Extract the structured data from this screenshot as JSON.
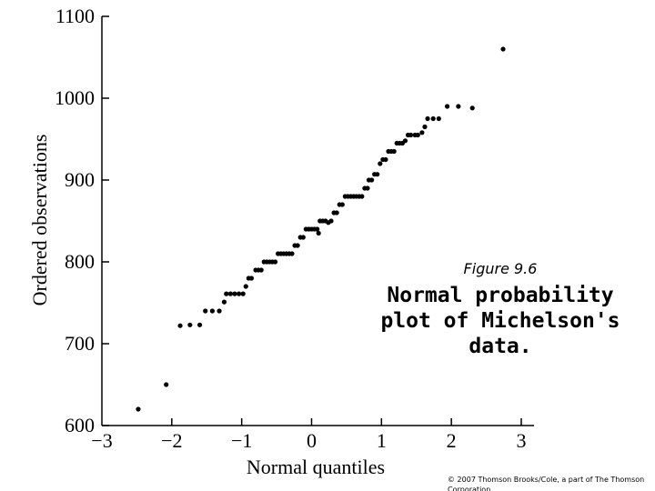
{
  "chart_data": {
    "type": "scatter",
    "xlabel": "Normal quantiles",
    "ylabel": "Ordered observations",
    "xlim": [
      -3,
      3
    ],
    "ylim": [
      600,
      1100
    ],
    "x_ticks": [
      "−3",
      "−2",
      "−1",
      "0",
      "1",
      "2",
      "3"
    ],
    "y_ticks": [
      "600",
      "700",
      "800",
      "900",
      "1000",
      "1100"
    ],
    "grid": false,
    "marker_color": "#000000",
    "points": [
      {
        "x": -2.48,
        "y": 620
      },
      {
        "x": -2.08,
        "y": 650
      },
      {
        "x": -1.88,
        "y": 722
      },
      {
        "x": -1.74,
        "y": 723
      },
      {
        "x": -1.6,
        "y": 723
      },
      {
        "x": -1.52,
        "y": 740
      },
      {
        "x": -1.42,
        "y": 740
      },
      {
        "x": -1.32,
        "y": 740
      },
      {
        "x": -1.25,
        "y": 751
      },
      {
        "x": -1.22,
        "y": 761
      },
      {
        "x": -1.16,
        "y": 761
      },
      {
        "x": -1.1,
        "y": 761
      },
      {
        "x": -1.04,
        "y": 761
      },
      {
        "x": -0.98,
        "y": 761
      },
      {
        "x": -0.94,
        "y": 770
      },
      {
        "x": -0.9,
        "y": 780
      },
      {
        "x": -0.86,
        "y": 780
      },
      {
        "x": -0.8,
        "y": 790
      },
      {
        "x": -0.76,
        "y": 790
      },
      {
        "x": -0.72,
        "y": 790
      },
      {
        "x": -0.68,
        "y": 800
      },
      {
        "x": -0.64,
        "y": 800
      },
      {
        "x": -0.6,
        "y": 800
      },
      {
        "x": -0.56,
        "y": 800
      },
      {
        "x": -0.52,
        "y": 800
      },
      {
        "x": -0.48,
        "y": 810
      },
      {
        "x": -0.44,
        "y": 810
      },
      {
        "x": -0.4,
        "y": 810
      },
      {
        "x": -0.36,
        "y": 810
      },
      {
        "x": -0.32,
        "y": 810
      },
      {
        "x": -0.28,
        "y": 810
      },
      {
        "x": -0.24,
        "y": 820
      },
      {
        "x": -0.2,
        "y": 820
      },
      {
        "x": -0.16,
        "y": 830
      },
      {
        "x": -0.12,
        "y": 830
      },
      {
        "x": -0.08,
        "y": 840
      },
      {
        "x": -0.04,
        "y": 840
      },
      {
        "x": 0.0,
        "y": 840
      },
      {
        "x": 0.04,
        "y": 840
      },
      {
        "x": 0.08,
        "y": 840
      },
      {
        "x": 0.1,
        "y": 835
      },
      {
        "x": 0.12,
        "y": 850
      },
      {
        "x": 0.16,
        "y": 850
      },
      {
        "x": 0.2,
        "y": 850
      },
      {
        "x": 0.24,
        "y": 848
      },
      {
        "x": 0.28,
        "y": 850
      },
      {
        "x": 0.32,
        "y": 860
      },
      {
        "x": 0.36,
        "y": 860
      },
      {
        "x": 0.4,
        "y": 870
      },
      {
        "x": 0.44,
        "y": 870
      },
      {
        "x": 0.48,
        "y": 880
      },
      {
        "x": 0.52,
        "y": 880
      },
      {
        "x": 0.56,
        "y": 880
      },
      {
        "x": 0.6,
        "y": 880
      },
      {
        "x": 0.64,
        "y": 880
      },
      {
        "x": 0.68,
        "y": 880
      },
      {
        "x": 0.72,
        "y": 880
      },
      {
        "x": 0.76,
        "y": 890
      },
      {
        "x": 0.8,
        "y": 890
      },
      {
        "x": 0.82,
        "y": 900
      },
      {
        "x": 0.86,
        "y": 900
      },
      {
        "x": 0.9,
        "y": 907
      },
      {
        "x": 0.94,
        "y": 907
      },
      {
        "x": 0.98,
        "y": 920
      },
      {
        "x": 1.02,
        "y": 925
      },
      {
        "x": 1.06,
        "y": 925
      },
      {
        "x": 1.1,
        "y": 935
      },
      {
        "x": 1.14,
        "y": 935
      },
      {
        "x": 1.18,
        "y": 935
      },
      {
        "x": 1.22,
        "y": 945
      },
      {
        "x": 1.26,
        "y": 945
      },
      {
        "x": 1.3,
        "y": 945
      },
      {
        "x": 1.34,
        "y": 948
      },
      {
        "x": 1.38,
        "y": 955
      },
      {
        "x": 1.42,
        "y": 955
      },
      {
        "x": 1.48,
        "y": 955
      },
      {
        "x": 1.52,
        "y": 955
      },
      {
        "x": 1.58,
        "y": 958
      },
      {
        "x": 1.62,
        "y": 965
      },
      {
        "x": 1.66,
        "y": 975
      },
      {
        "x": 1.74,
        "y": 975
      },
      {
        "x": 1.82,
        "y": 975
      },
      {
        "x": 1.94,
        "y": 990
      },
      {
        "x": 2.1,
        "y": 990
      },
      {
        "x": 2.3,
        "y": 988
      },
      {
        "x": 2.74,
        "y": 1060
      }
    ]
  },
  "caption": {
    "figure_number": "Figure 9.6",
    "title_lines": [
      "Normal probability",
      "plot of Michelson's",
      "data."
    ]
  },
  "footer": {
    "copyright": "© 2007 Thomson Brooks/Cole, a part of The Thomson Corporation"
  }
}
